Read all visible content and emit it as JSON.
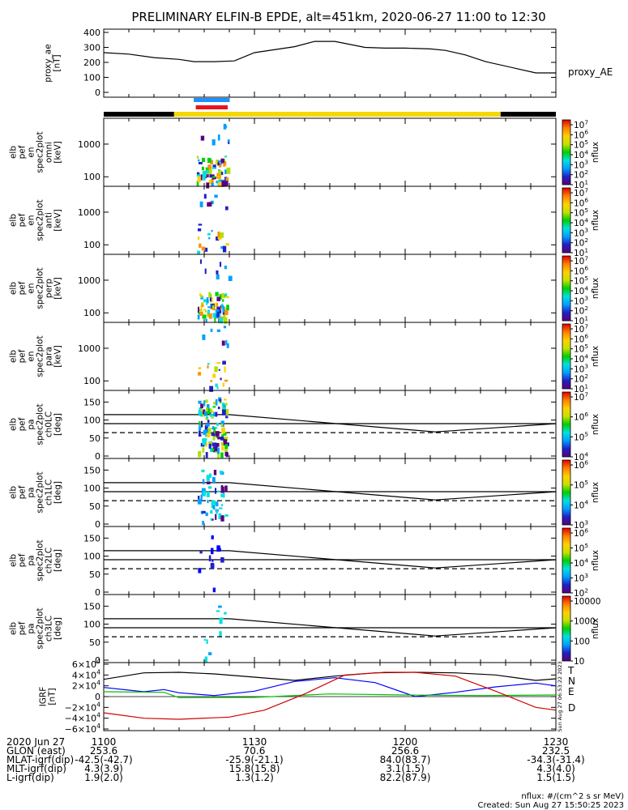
{
  "title": "PRELIMINARY ELFIN-B EPDE, alt=451km, 2020-06-27 11:00 to 12:30",
  "colors": {
    "orbit_dark": "#000000",
    "orbit_sunlit": "#f5d800",
    "bar_blue": "#1e90ff",
    "bar_red": "#e8141e",
    "trace_T": "#000000",
    "trace_N": "#0000ff",
    "trace_E": "#00c000",
    "trace_D": "#d00000"
  },
  "panels": {
    "ae": {
      "ylabel": [
        "proxy_ae",
        "[nT]"
      ],
      "yticks": [
        "400",
        "300",
        "200",
        "100",
        "0"
      ],
      "label": "proxy_AE"
    },
    "spec": [
      {
        "ylabel": [
          "elb",
          "pef",
          "en",
          "spec2plot",
          "omni",
          "[keV]"
        ],
        "yticks": [
          "1000",
          "100"
        ],
        "cbar_ticks": [
          "10^7",
          "10^6",
          "10^5",
          "10^4",
          "10^3",
          "10^2",
          "10^1"
        ],
        "cbar_label": "nflux"
      },
      {
        "ylabel": [
          "elb",
          "pef",
          "en",
          "spec2plot",
          "anti",
          "[keV]"
        ],
        "yticks": [
          "1000",
          "100"
        ],
        "cbar_ticks": [
          "10^7",
          "10^6",
          "10^5",
          "10^4",
          "10^3",
          "10^2",
          "10^1"
        ],
        "cbar_label": "nflux"
      },
      {
        "ylabel": [
          "elb",
          "pef",
          "en",
          "spec2plot",
          "perp",
          "[keV]"
        ],
        "yticks": [
          "1000",
          "100"
        ],
        "cbar_ticks": [
          "10^7",
          "10^6",
          "10^5",
          "10^4",
          "10^3",
          "10^2",
          "10^1"
        ],
        "cbar_label": "nflux"
      },
      {
        "ylabel": [
          "elb",
          "pef",
          "en",
          "spec2plot",
          "para",
          "[keV]"
        ],
        "yticks": [
          "1000",
          "100"
        ],
        "cbar_ticks": [
          "10^7",
          "10^6",
          "10^5",
          "10^4",
          "10^3",
          "10^2",
          "10^1"
        ],
        "cbar_label": "nflux"
      }
    ],
    "pa": [
      {
        "ylabel": [
          "elb",
          "pef",
          "pa",
          "spec2plot",
          "ch0LC",
          "[deg]"
        ],
        "yticks": [
          "150",
          "100",
          "50",
          "0"
        ],
        "cbar_ticks": [
          "10^7",
          "10^6",
          "10^5",
          "10^4"
        ],
        "cbar_label": "nflux"
      },
      {
        "ylabel": [
          "elb",
          "pef",
          "pa",
          "spec2plot",
          "ch1LC",
          "[deg]"
        ],
        "yticks": [
          "150",
          "100",
          "50",
          "0"
        ],
        "cbar_ticks": [
          "10^6",
          "10^5",
          "10^4",
          "10^3"
        ],
        "cbar_label": "nflux"
      },
      {
        "ylabel": [
          "elb",
          "pef",
          "pa",
          "spec2plot",
          "ch2LC",
          "[deg]"
        ],
        "yticks": [
          "150",
          "100",
          "50",
          "0"
        ],
        "cbar_ticks": [
          "10^6",
          "10^5",
          "10^4",
          "10^3",
          "10^2"
        ],
        "cbar_label": "nflux"
      },
      {
        "ylabel": [
          "elb",
          "pef",
          "pa",
          "spec2plot",
          "ch3LC",
          "[deg]"
        ],
        "yticks": [
          "150",
          "100",
          "50",
          "0"
        ],
        "cbar_ticks": [
          "10000",
          "1000",
          "100",
          "10"
        ],
        "cbar_label": "nflux"
      }
    ],
    "igrf": {
      "ylabel": [
        "IGRF",
        "[nT]"
      ],
      "yticks": [
        "6×10^4",
        "4×10^4",
        "2×10^4",
        "0",
        "−2×10^4",
        "−4×10^4",
        "−6×10^4"
      ],
      "legend": [
        "T",
        "N",
        "E",
        "D"
      ],
      "stamp": "Sun Aug 27 06:53:22 2023"
    }
  },
  "xaxis": {
    "rows": [
      {
        "label": "2020 Jun 27",
        "values": [
          "1100",
          "1130",
          "1200",
          "1230"
        ]
      },
      {
        "label": "GLON (east)",
        "values": [
          "253.6",
          "70.6",
          "256.6",
          "232.5"
        ]
      },
      {
        "label": "MLAT-igrf(dip)",
        "values": [
          "-42.5(-42.7)",
          "-25.9(-21.1)",
          "84.0(83.7)",
          "-34.3(-31.4)"
        ]
      },
      {
        "label": "MLT-igrf(dip)",
        "values": [
          "4.3(3.9)",
          "15.8(15.8)",
          "3.1(1.5)",
          "4.3(4.0)"
        ]
      },
      {
        "label": "L-igrf(dip)",
        "values": [
          "1.9(2.0)",
          "1.3(1.2)",
          "82.2(87.9)",
          "1.5(1.5)"
        ]
      }
    ]
  },
  "footer": {
    "units": "nflux: #/(cm^2 s sr MeV)",
    "created": "Created: Sun Aug 27 15:50:25 2023"
  },
  "chart_data": {
    "type": "line",
    "x_range_minutes_after_1100": [
      0,
      90
    ],
    "proxy_ae": {
      "x": [
        0,
        5,
        10,
        15,
        18,
        22,
        26,
        30,
        38,
        42,
        46,
        52,
        56,
        60,
        65,
        68,
        72,
        76,
        82,
        86,
        90
      ],
      "y": [
        265,
        255,
        232,
        220,
        205,
        205,
        210,
        265,
        305,
        340,
        340,
        300,
        295,
        295,
        290,
        280,
        250,
        205,
        160,
        130,
        130
      ],
      "ylim": [
        0,
        400
      ]
    },
    "orbit_bar": [
      {
        "from": 0,
        "to": 14,
        "state": "dark"
      },
      {
        "from": 14,
        "to": 79,
        "state": "sunlit"
      },
      {
        "from": 79,
        "to": 90,
        "state": "dark"
      }
    ],
    "science_zone": {
      "from": 18,
      "to": 25
    },
    "pa_lines_deg": {
      "solid_upper": {
        "x": [
          0,
          25,
          66,
          90
        ],
        "y": [
          115,
          115,
          67,
          90
        ]
      },
      "solid_lower": {
        "x": [
          0,
          90
        ],
        "y": [
          90,
          90
        ]
      },
      "dashed": {
        "x": [
          0,
          90
        ],
        "y": [
          65,
          65
        ]
      },
      "ylim": [
        0,
        180
      ]
    },
    "igrf_series": [
      {
        "name": "T",
        "x": [
          0,
          8,
          15,
          22,
          30,
          38,
          46,
          54,
          62,
          70,
          78,
          86,
          90
        ],
        "y": [
          32000,
          44000,
          45000,
          42000,
          36000,
          30000,
          38000,
          44000,
          45000,
          44000,
          40000,
          30000,
          33000
        ]
      },
      {
        "name": "N",
        "x": [
          0,
          8,
          12,
          15,
          22,
          30,
          38,
          46,
          54,
          62,
          70,
          78,
          86,
          90
        ],
        "y": [
          17000,
          9000,
          13000,
          7000,
          2000,
          10000,
          28000,
          35000,
          26000,
          0,
          8000,
          18000,
          25000,
          20000
        ]
      },
      {
        "name": "E",
        "x": [
          0,
          12,
          15,
          30,
          45,
          60,
          75,
          90
        ],
        "y": [
          9000,
          8000,
          -2000,
          -1500,
          5000,
          3000,
          2000,
          3000
        ]
      },
      {
        "name": "D",
        "x": [
          0,
          8,
          15,
          25,
          32,
          40,
          48,
          56,
          62,
          70,
          78,
          86,
          90
        ],
        "y": [
          -30000,
          -40000,
          -42000,
          -38000,
          -25000,
          5000,
          40000,
          45000,
          45000,
          38000,
          10000,
          -20000,
          -25000
        ]
      }
    ],
    "igrf_ylim": [
      -60000,
      60000
    ]
  }
}
